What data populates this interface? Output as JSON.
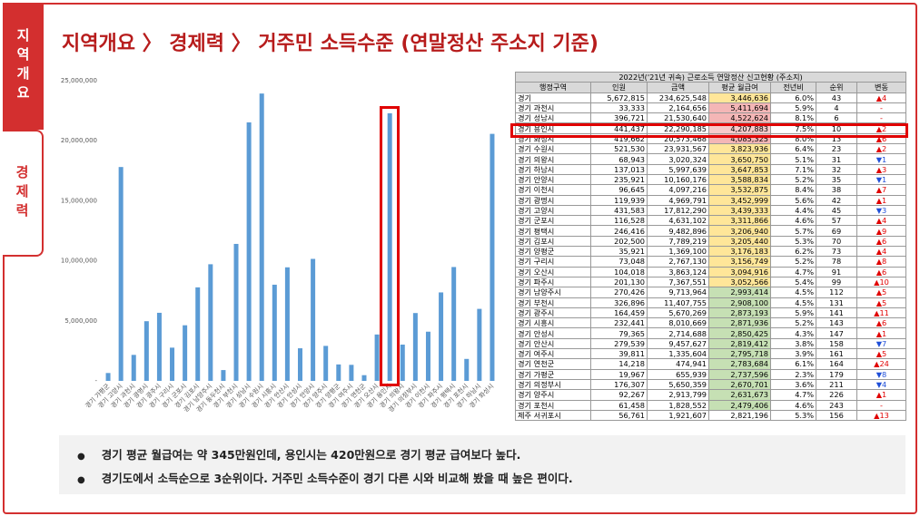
{
  "nav": [
    "지역개요",
    "경제력"
  ],
  "header": {
    "title": "지역개요 〉 경제력 〉 거주민 소득수준 (연말정산 주소지 기준)"
  },
  "chart_data": {
    "type": "bar",
    "color": "#5b9bd5",
    "categories": [
      "경기 가평군",
      "경기 고양시",
      "경기 과천시",
      "경기 광명시",
      "경기 광주시",
      "경기 구리시",
      "경기 군포시",
      "경기 김포시",
      "경기 남양주시",
      "경기 동두천시",
      "경기 부천시",
      "경기 성남시",
      "경기 수원시",
      "경기 시흥시",
      "경기 안산시",
      "경기 안성시",
      "경기 안양시",
      "경기 양주시",
      "경기 양평군",
      "경기 여주시",
      "경기 연천군",
      "경기 오산시",
      "경기 용인시",
      "경기 의왕시",
      "경기 의정부시",
      "경기 이천시",
      "경기 파주시",
      "경기 평택시",
      "경기 포천시",
      "경기 하남시",
      "경기 화성시"
    ],
    "values": [
      655939,
      17812290,
      2164656,
      4969791,
      5670269,
      2767130,
      4631102,
      7789219,
      9713964,
      900000,
      11407755,
      21530640,
      23931567,
      8010669,
      9457627,
      2714688,
      10160176,
      2913799,
      1369100,
      1335604,
      474941,
      3863124,
      22290185,
      3020324,
      5650359,
      4097216,
      7367551,
      9482896,
      1828552,
      5997639,
      20573468
    ],
    "ylim": [
      0,
      25000000
    ],
    "yticks": [
      {
        "value": 0,
        "label": "-"
      },
      {
        "value": 5000000,
        "label": "5,000,000"
      },
      {
        "value": 10000000,
        "label": "10,000,000"
      },
      {
        "value": 15000000,
        "label": "15,000,000"
      },
      {
        "value": 20000000,
        "label": "20,000,000"
      },
      {
        "value": 25000000,
        "label": "25,000,000"
      }
    ]
  },
  "table": {
    "title": "2022년('21년 귀속) 근로소득 연말정산 신고현황 (주소지)",
    "columns": [
      "행정구역",
      "인원",
      "금액",
      "평균 월급여",
      "전년비",
      "순위",
      "변동"
    ],
    "rows": [
      [
        "경기",
        "5,672,815",
        "234,625,548",
        "3,446,636",
        "6.0%",
        "43",
        "▲4"
      ],
      [
        "경기 과천시",
        "33,333",
        "2,164,656",
        "5,411,694",
        "5.9%",
        "4",
        "-"
      ],
      [
        "경기 성남시",
        "396,721",
        "21,530,640",
        "4,522,624",
        "8.1%",
        "6",
        "-"
      ],
      [
        "경기 용인시",
        "441,437",
        "22,290,185",
        "4,207,883",
        "7.5%",
        "10",
        "▲2"
      ],
      [
        "경기 화성시",
        "419,662",
        "20,573,468",
        "4,085,325",
        "8.0%",
        "13",
        "▲6"
      ],
      [
        "경기 수원시",
        "521,530",
        "23,931,567",
        "3,823,936",
        "6.4%",
        "23",
        "▲2"
      ],
      [
        "경기 의왕시",
        "68,943",
        "3,020,324",
        "3,650,750",
        "5.1%",
        "31",
        "▼1"
      ],
      [
        "경기 하남시",
        "137,013",
        "5,997,639",
        "3,647,853",
        "7.1%",
        "32",
        "▲3"
      ],
      [
        "경기 안양시",
        "235,921",
        "10,160,176",
        "3,588,834",
        "5.2%",
        "35",
        "▼1"
      ],
      [
        "경기 이천시",
        "96,645",
        "4,097,216",
        "3,532,875",
        "8.4%",
        "38",
        "▲7"
      ],
      [
        "경기 광명시",
        "119,939",
        "4,969,791",
        "3,452,999",
        "5.6%",
        "42",
        "▲1"
      ],
      [
        "경기 고양시",
        "431,583",
        "17,812,290",
        "3,439,333",
        "4.4%",
        "45",
        "▼3"
      ],
      [
        "경기 군포시",
        "116,528",
        "4,631,102",
        "3,311,866",
        "4.6%",
        "57",
        "▲4"
      ],
      [
        "경기 평택시",
        "246,416",
        "9,482,896",
        "3,206,940",
        "5.7%",
        "69",
        "▲9"
      ],
      [
        "경기 김포시",
        "202,500",
        "7,789,219",
        "3,205,440",
        "5.3%",
        "70",
        "▲6"
      ],
      [
        "경기 양평군",
        "35,921",
        "1,369,100",
        "3,176,183",
        "6.2%",
        "73",
        "▲4"
      ],
      [
        "경기 구리시",
        "73,048",
        "2,767,130",
        "3,156,749",
        "5.2%",
        "78",
        "▲8"
      ],
      [
        "경기 오산시",
        "104,018",
        "3,863,124",
        "3,094,916",
        "4.7%",
        "91",
        "▲6"
      ],
      [
        "경기 파주시",
        "201,130",
        "7,367,551",
        "3,052,566",
        "5.4%",
        "99",
        "▲10"
      ],
      [
        "경기 남양주시",
        "270,426",
        "9,713,964",
        "2,993,414",
        "4.5%",
        "112",
        "▲5"
      ],
      [
        "경기 부천시",
        "326,896",
        "11,407,755",
        "2,908,100",
        "4.5%",
        "131",
        "▲5"
      ],
      [
        "경기 광주시",
        "164,459",
        "5,670,269",
        "2,873,193",
        "5.9%",
        "141",
        "▲11"
      ],
      [
        "경기 시흥시",
        "232,441",
        "8,010,669",
        "2,871,936",
        "5.2%",
        "143",
        "▲6"
      ],
      [
        "경기 안성시",
        "79,365",
        "2,714,688",
        "2,850,425",
        "4.3%",
        "147",
        "▲1"
      ],
      [
        "경기 안산시",
        "279,539",
        "9,457,627",
        "2,819,412",
        "3.8%",
        "158",
        "▼7"
      ],
      [
        "경기 여주시",
        "39,811",
        "1,335,604",
        "2,795,718",
        "3.9%",
        "161",
        "▲5"
      ],
      [
        "경기 연천군",
        "14,218",
        "474,941",
        "2,783,684",
        "6.1%",
        "164",
        "▲24"
      ],
      [
        "경기 가평군",
        "19,967",
        "655,939",
        "2,737,596",
        "2.3%",
        "179",
        "▼8"
      ],
      [
        "경기 의정부시",
        "176,307",
        "5,650,359",
        "2,670,701",
        "3.6%",
        "211",
        "▼4"
      ],
      [
        "경기 양주시",
        "92,267",
        "2,913,799",
        "2,631,673",
        "4.7%",
        "226",
        "▲1"
      ],
      [
        "경기 포천시",
        "61,458",
        "1,828,552",
        "2,479,406",
        "4.6%",
        "243",
        "-"
      ],
      [
        "제주 서귀포시",
        "56,761",
        "1,921,607",
        "2,821,196",
        "5.3%",
        "156",
        "▲13"
      ]
    ],
    "avg_colors": [
      "#ffe699",
      "#f4b6b6",
      "#f4b6b6",
      "#f8cbcb",
      "#f4b6b6",
      "#ffe699",
      "#ffe699",
      "#ffe699",
      "#ffe699",
      "#ffe699",
      "#ffe699",
      "#ffe699",
      "#ffe699",
      "#ffe699",
      "#ffe699",
      "#ffe699",
      "#ffe699",
      "#ffe699",
      "#ffe699",
      "#c6e0b4",
      "#c6e0b4",
      "#c6e0b4",
      "#c6e0b4",
      "#c6e0b4",
      "#c6e0b4",
      "#c6e0b4",
      "#c6e0b4",
      "#c6e0b4",
      "#c6e0b4",
      "#c6e0b4",
      "#c6e0b4",
      "#ffffff"
    ]
  },
  "bullets": [
    "경기 평균 월급여는 약 345만원인데, 용인시는 420만원으로 경기 평균 급여보다 높다.",
    "경기도에서 소득순으로 3순위이다. 거주민 소득수준이 경기 다른 시와 비교해 봤을 때 높은 편이다."
  ]
}
